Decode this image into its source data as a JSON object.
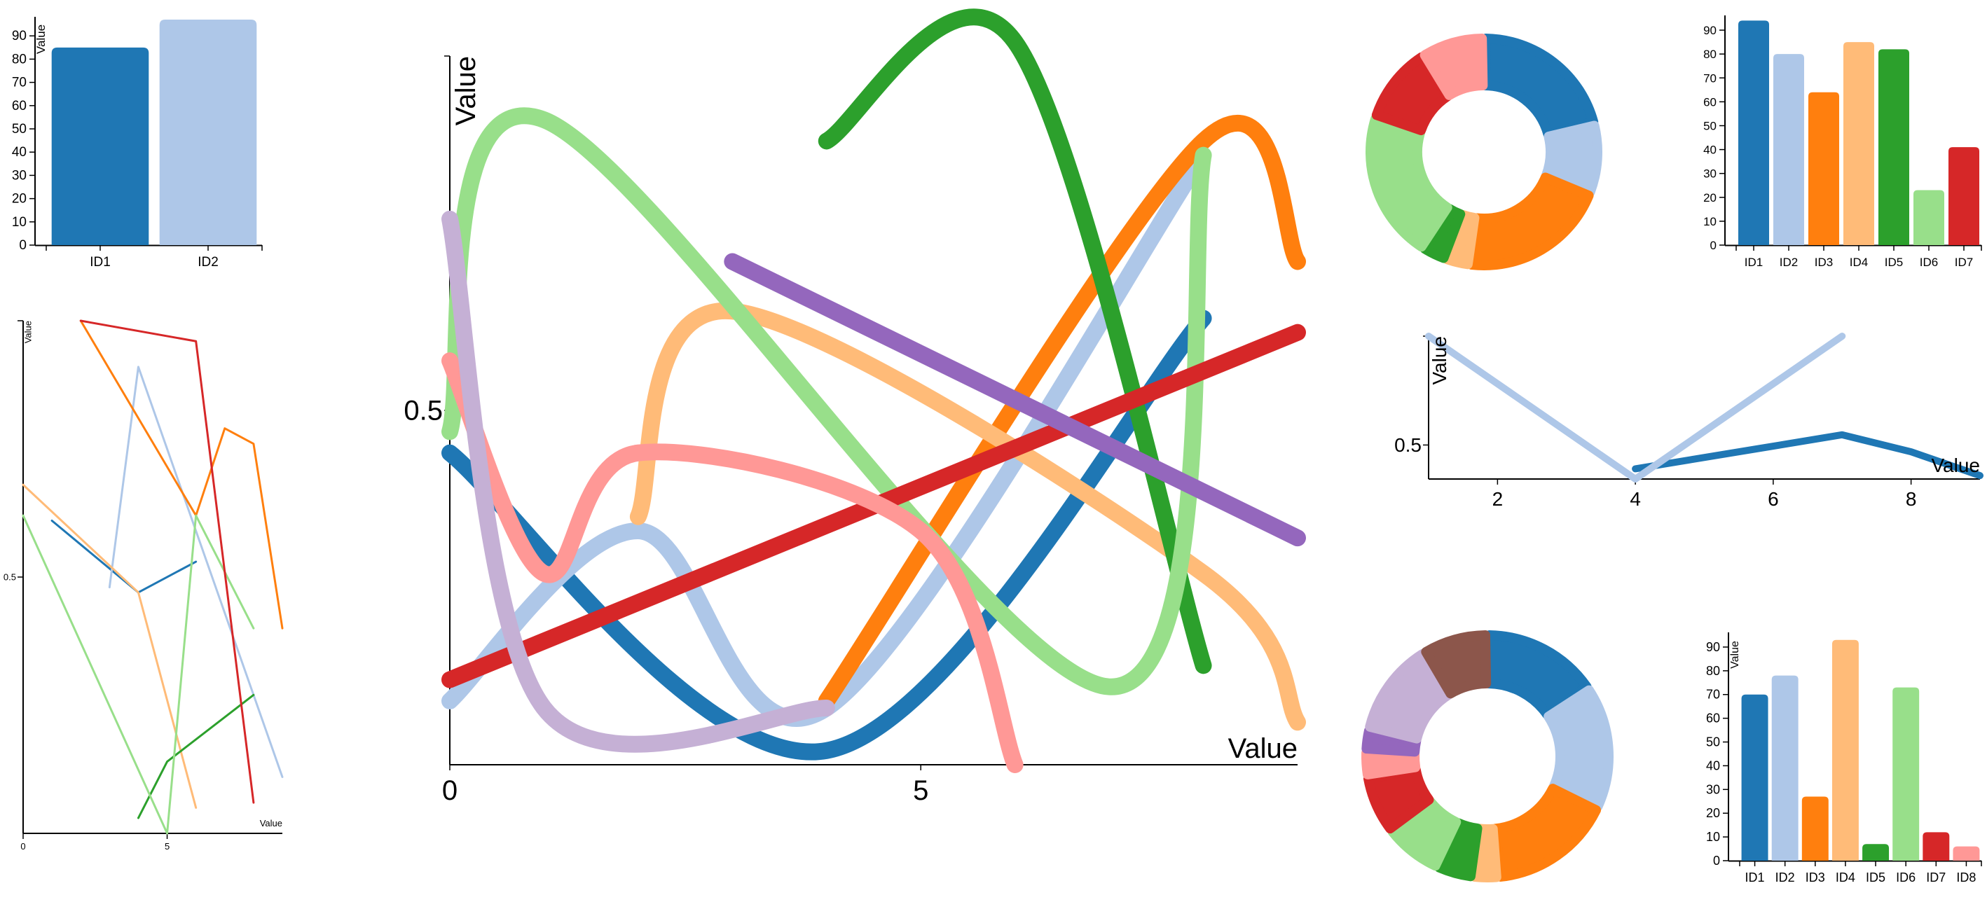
{
  "chart_data": [
    {
      "type": "bar",
      "ylabel": "Value",
      "ylim": [
        0,
        97
      ],
      "yticks": [
        0,
        10,
        20,
        30,
        40,
        50,
        60,
        70,
        80,
        90
      ],
      "categories": [
        "ID1",
        "ID2"
      ],
      "values": [
        85,
        97
      ],
      "colors": [
        "#1f77b4",
        "#aec7e8"
      ]
    },
    {
      "type": "line",
      "ylabel": "Value",
      "xlabel": "Value",
      "xlim": [
        0,
        9
      ],
      "ylim": [
        0,
        1
      ],
      "xticks": [
        0,
        5
      ],
      "yticks": [
        0.5
      ],
      "series": [
        {
          "color": "#1f77b4",
          "x": [
            1,
            4,
            6
          ],
          "y": [
            0.61,
            0.47,
            0.53
          ]
        },
        {
          "color": "#aec7e8",
          "x": [
            3,
            4,
            9
          ],
          "y": [
            0.48,
            0.91,
            0.11
          ]
        },
        {
          "color": "#ff7f0e",
          "x": [
            2,
            6,
            7,
            8,
            9
          ],
          "y": [
            1.0,
            0.62,
            0.79,
            0.76,
            0.4
          ]
        },
        {
          "color": "#ffbb78",
          "x": [
            0,
            4,
            6
          ],
          "y": [
            0.68,
            0.47,
            0.05
          ]
        },
        {
          "color": "#2ca02c",
          "x": [
            4,
            5,
            8
          ],
          "y": [
            0.03,
            0.14,
            0.27
          ]
        },
        {
          "color": "#98df8a",
          "x": [
            0,
            5,
            6,
            8
          ],
          "y": [
            0.62,
            0.0,
            0.62,
            0.4
          ]
        },
        {
          "color": "#d62728",
          "x": [
            2,
            6,
            8
          ],
          "y": [
            1.0,
            0.96,
            0.06
          ]
        }
      ]
    },
    {
      "type": "line",
      "ylabel": "Value",
      "xlabel": "Value",
      "xlim": [
        0,
        9
      ],
      "ylim": [
        0,
        1
      ],
      "xticks": [
        0,
        5
      ],
      "yticks": [
        0.5
      ],
      "series": [
        {
          "color": "#1f77b4",
          "x": [
            0,
            4,
            8
          ],
          "y": [
            0.44,
            0.02,
            0.63
          ]
        },
        {
          "color": "#aec7e8",
          "x": [
            0,
            2,
            4,
            8
          ],
          "y": [
            0.09,
            0.33,
            0.08,
            0.86
          ]
        },
        {
          "color": "#ff7f0e",
          "x": [
            4,
            8,
            9
          ],
          "y": [
            0.09,
            0.88,
            0.71
          ]
        },
        {
          "color": "#ffbb78",
          "x": [
            2,
            3,
            8,
            9
          ],
          "y": [
            0.35,
            0.64,
            0.27,
            0.06
          ]
        },
        {
          "color": "#2ca02c",
          "x": [
            4,
            6,
            8
          ],
          "y": [
            0.88,
            1.02,
            0.14
          ]
        },
        {
          "color": "#98df8a",
          "x": [
            0,
            1,
            7,
            8
          ],
          "y": [
            0.47,
            0.91,
            0.11,
            0.86
          ]
        },
        {
          "color": "#d62728",
          "x": [
            0,
            9
          ],
          "y": [
            0.12,
            0.61
          ]
        },
        {
          "color": "#ff9896",
          "x": [
            0,
            1,
            2,
            5,
            6
          ],
          "y": [
            0.57,
            0.27,
            0.44,
            0.33,
            0.0
          ]
        },
        {
          "color": "#9467bd",
          "x": [
            3,
            9
          ],
          "y": [
            0.71,
            0.32
          ]
        },
        {
          "color": "#c5b0d5",
          "x": [
            0,
            1,
            4
          ],
          "y": [
            0.77,
            0.08,
            0.08
          ]
        }
      ]
    },
    {
      "type": "pie",
      "donut": true,
      "slices": [
        {
          "value": 21,
          "color": "#1f77b4"
        },
        {
          "value": 10,
          "color": "#aec7e8"
        },
        {
          "value": 21,
          "color": "#ff7f0e"
        },
        {
          "value": 3.5,
          "color": "#ffbb78"
        },
        {
          "value": 3.5,
          "color": "#2ca02c"
        },
        {
          "value": 21,
          "color": "#98df8a"
        },
        {
          "value": 11,
          "color": "#d62728"
        },
        {
          "value": 9,
          "color": "#ff9896"
        }
      ]
    },
    {
      "type": "bar",
      "ylim": [
        0,
        95
      ],
      "yticks": [
        0,
        10,
        20,
        30,
        40,
        50,
        60,
        70,
        80,
        90
      ],
      "categories": [
        "ID1",
        "ID2",
        "ID3",
        "ID4",
        "ID5",
        "ID6",
        "ID7"
      ],
      "values": [
        94,
        80,
        64,
        85,
        82,
        23,
        41
      ],
      "colors": [
        "#1f77b4",
        "#aec7e8",
        "#ff7f0e",
        "#ffbb78",
        "#2ca02c",
        "#98df8a",
        "#d62728"
      ]
    },
    {
      "type": "line",
      "ylabel": "Value",
      "xlabel": "Value",
      "xlim": [
        1,
        9
      ],
      "ylim": [
        0.4,
        0.82
      ],
      "xticks": [
        2,
        4,
        6,
        8
      ],
      "yticks": [
        0.5
      ],
      "series": [
        {
          "color": "#1f77b4",
          "x": [
            4,
            7,
            8,
            9
          ],
          "y": [
            0.43,
            0.53,
            0.48,
            0.41
          ]
        },
        {
          "color": "#aec7e8",
          "x": [
            1,
            4,
            7
          ],
          "y": [
            0.82,
            0.4,
            0.82
          ]
        }
      ]
    },
    {
      "type": "pie",
      "donut": true,
      "slices": [
        {
          "value": 16,
          "color": "#1f77b4"
        },
        {
          "value": 17,
          "color": "#aec7e8"
        },
        {
          "value": 17,
          "color": "#ff7f0e"
        },
        {
          "value": 3.5,
          "color": "#ffbb78"
        },
        {
          "value": 5,
          "color": "#2ca02c"
        },
        {
          "value": 8,
          "color": "#98df8a"
        },
        {
          "value": 8,
          "color": "#d62728"
        },
        {
          "value": 3.5,
          "color": "#ff9896"
        },
        {
          "value": 3,
          "color": "#9467bd"
        },
        {
          "value": 13,
          "color": "#c5b0d5"
        },
        {
          "value": 9,
          "color": "#8c564b"
        }
      ]
    },
    {
      "type": "bar",
      "ylabel": "Value",
      "ylim": [
        0,
        95
      ],
      "yticks": [
        0,
        10,
        20,
        30,
        40,
        50,
        60,
        70,
        80,
        90
      ],
      "categories": [
        "ID1",
        "ID2",
        "ID3",
        "ID4",
        "ID5",
        "ID6",
        "ID7",
        "ID8"
      ],
      "values": [
        70,
        78,
        27,
        93,
        7,
        73,
        12,
        6
      ],
      "colors": [
        "#1f77b4",
        "#aec7e8",
        "#ff7f0e",
        "#ffbb78",
        "#2ca02c",
        "#98df8a",
        "#d62728",
        "#ff9896"
      ]
    }
  ]
}
